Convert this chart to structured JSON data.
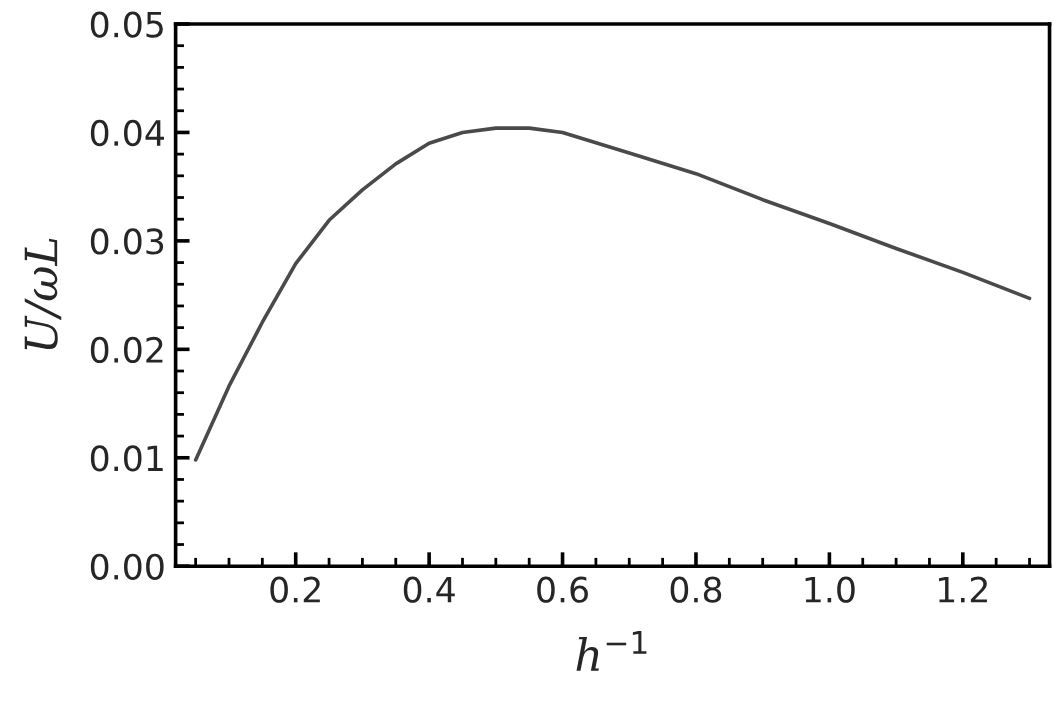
{
  "chart_data": {
    "type": "line",
    "xlabel": "h$^{−1}$",
    "ylabel": "U/ωL",
    "x": [
      0.05,
      0.1,
      0.15,
      0.2,
      0.25,
      0.3,
      0.35,
      0.4,
      0.45,
      0.5,
      0.55,
      0.6,
      0.7,
      0.8,
      0.9,
      1.0,
      1.1,
      1.2,
      1.3
    ],
    "series": [
      {
        "color": "#4a4a4a",
        "values": [
          0.0098,
          0.0166,
          0.0225,
          0.0279,
          0.0319,
          0.0347,
          0.0371,
          0.039,
          0.04,
          0.0404,
          0.0404,
          0.04,
          0.0381,
          0.0362,
          0.0338,
          0.0316,
          0.0293,
          0.0271,
          0.0247
        ]
      }
    ],
    "xlim": [
      0.02,
      1.33
    ],
    "ylim": [
      0,
      0.05
    ],
    "xticks": [
      0.2,
      0.4,
      0.6,
      0.8,
      {
        "value": 1.0,
        "label": "1.0"
      },
      1.2
    ],
    "yticks": [
      {
        "value": 0,
        "label": "0.00"
      },
      0.01,
      0.02,
      0.03,
      0.04,
      0.05
    ],
    "grid": false,
    "legend": false,
    "marker": "none",
    "line_style": "solid"
  }
}
